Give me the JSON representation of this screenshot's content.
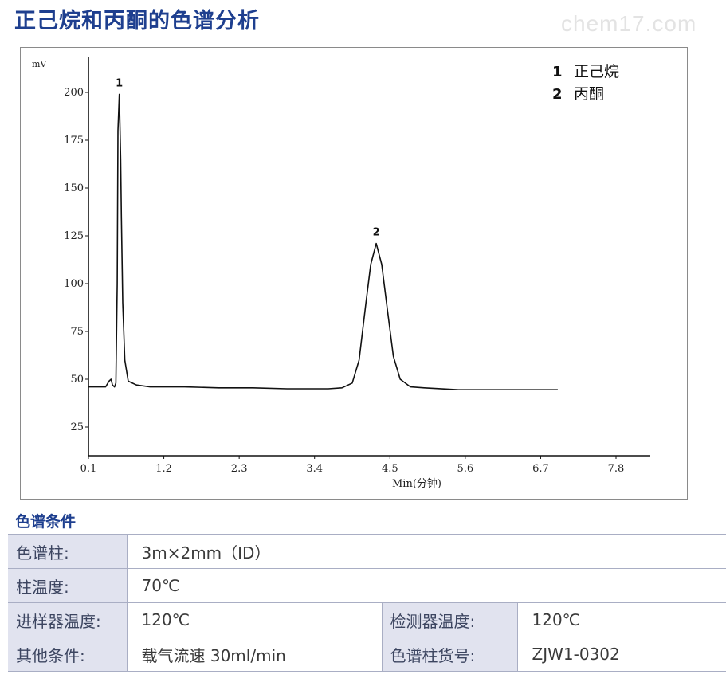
{
  "page": {
    "title": "正己烷和丙酮的色谱分析",
    "watermark": "chem17.com"
  },
  "chart_data": {
    "type": "line",
    "ylabel": "mV",
    "xlabel": "Min(分钟)",
    "xlim": [
      0.1,
      8.3
    ],
    "ylim": [
      10,
      215
    ],
    "x_ticks": [
      0.1,
      1.2,
      2.3,
      3.4,
      4.5,
      5.6,
      6.7,
      7.8
    ],
    "x_tick_labels": [
      "0.1",
      "1.2",
      "2.3",
      "3.4",
      "4.5",
      "5.6",
      "6.7",
      "7.8"
    ],
    "y_ticks": [
      25,
      50,
      75,
      100,
      125,
      150,
      175,
      200
    ],
    "y_tick_labels": [
      "25",
      "50",
      "75",
      "100",
      "125",
      "150",
      "175",
      "200"
    ],
    "baseline": 46,
    "peaks": [
      {
        "label": "1",
        "retention_time": 0.55,
        "height": 199
      },
      {
        "label": "2",
        "retention_time": 4.3,
        "height": 121
      }
    ],
    "series": [
      {
        "x": [
          0.1,
          0.35,
          0.4,
          0.43,
          0.45,
          0.48,
          0.5,
          0.52,
          0.53,
          0.55,
          0.57,
          0.58,
          0.6,
          0.63,
          0.68,
          0.8,
          1.0,
          1.5,
          2.0,
          2.5,
          3.0,
          3.6,
          3.8,
          3.95,
          4.05,
          4.15,
          4.22,
          4.3,
          4.38,
          4.45,
          4.55,
          4.65,
          4.8,
          5.0,
          5.5,
          6.0,
          6.5,
          6.95
        ],
        "y": [
          46,
          46,
          49,
          50,
          47,
          46,
          48,
          100,
          180,
          199,
          165,
          135,
          90,
          60,
          49,
          47,
          46,
          46,
          45.5,
          45.5,
          45,
          45,
          45.5,
          48,
          60,
          90,
          110,
          121,
          110,
          90,
          62,
          50,
          46,
          45.5,
          44.5,
          44.5,
          44.5,
          44.5
        ]
      }
    ],
    "legend": [
      {
        "num": "1",
        "name": "正己烷"
      },
      {
        "num": "2",
        "name": "丙酮"
      }
    ],
    "line_color": "#111111"
  },
  "conditions": {
    "section_title": "色谱条件",
    "rows": [
      {
        "label": "色谱柱:",
        "value": "3m×2mm（ID）"
      },
      {
        "label": "柱温度:",
        "value": "70℃"
      },
      {
        "label": "进样器温度:",
        "value": "120℃",
        "label2": "检测器温度:",
        "value2": "120℃"
      },
      {
        "label": "其他条件:",
        "value": "载气流速 30ml/min",
        "label2": "色谱柱货号:",
        "value2": "ZJW1-0302"
      }
    ]
  }
}
